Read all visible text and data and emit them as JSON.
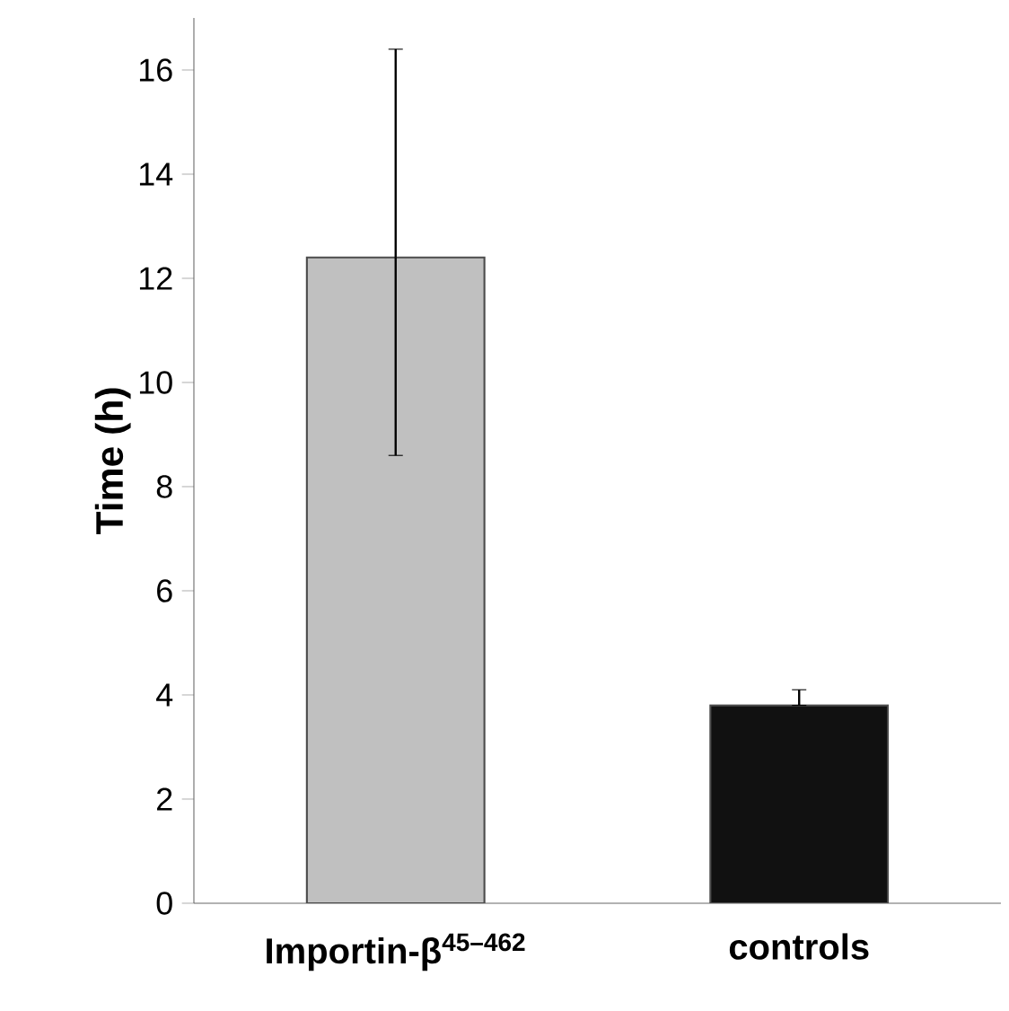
{
  "chart_data": {
    "type": "bar",
    "ylabel": "Time (h)",
    "categories": [
      "Importin-β$^{45–462}$",
      "controls"
    ],
    "values": [
      12.4,
      3.8
    ],
    "colors": [
      "#c0c0c0",
      "#111111"
    ],
    "errors": [
      [
        8.6,
        16.4
      ],
      [
        3.8,
        4.1
      ]
    ],
    "ylim": [
      0,
      17
    ],
    "yticks": [
      0,
      2,
      4,
      6,
      8,
      10,
      12,
      14,
      16
    ],
    "grid": false
  }
}
